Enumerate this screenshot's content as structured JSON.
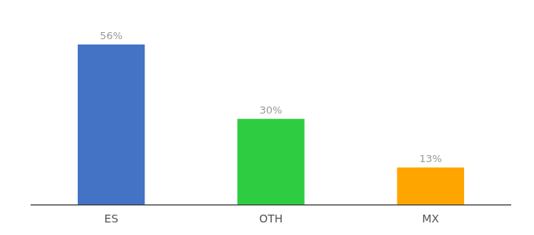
{
  "chart_data": {
    "type": "bar",
    "categories": [
      "ES",
      "OTH",
      "MX"
    ],
    "values": [
      56,
      30,
      13
    ],
    "value_labels": [
      "56%",
      "30%",
      "13%"
    ],
    "colors": [
      "#4472C4",
      "#2ECC40",
      "#FFA500"
    ],
    "ylim": [
      0,
      65
    ],
    "grid": false,
    "data_labels": true,
    "tick_labels": "x"
  }
}
